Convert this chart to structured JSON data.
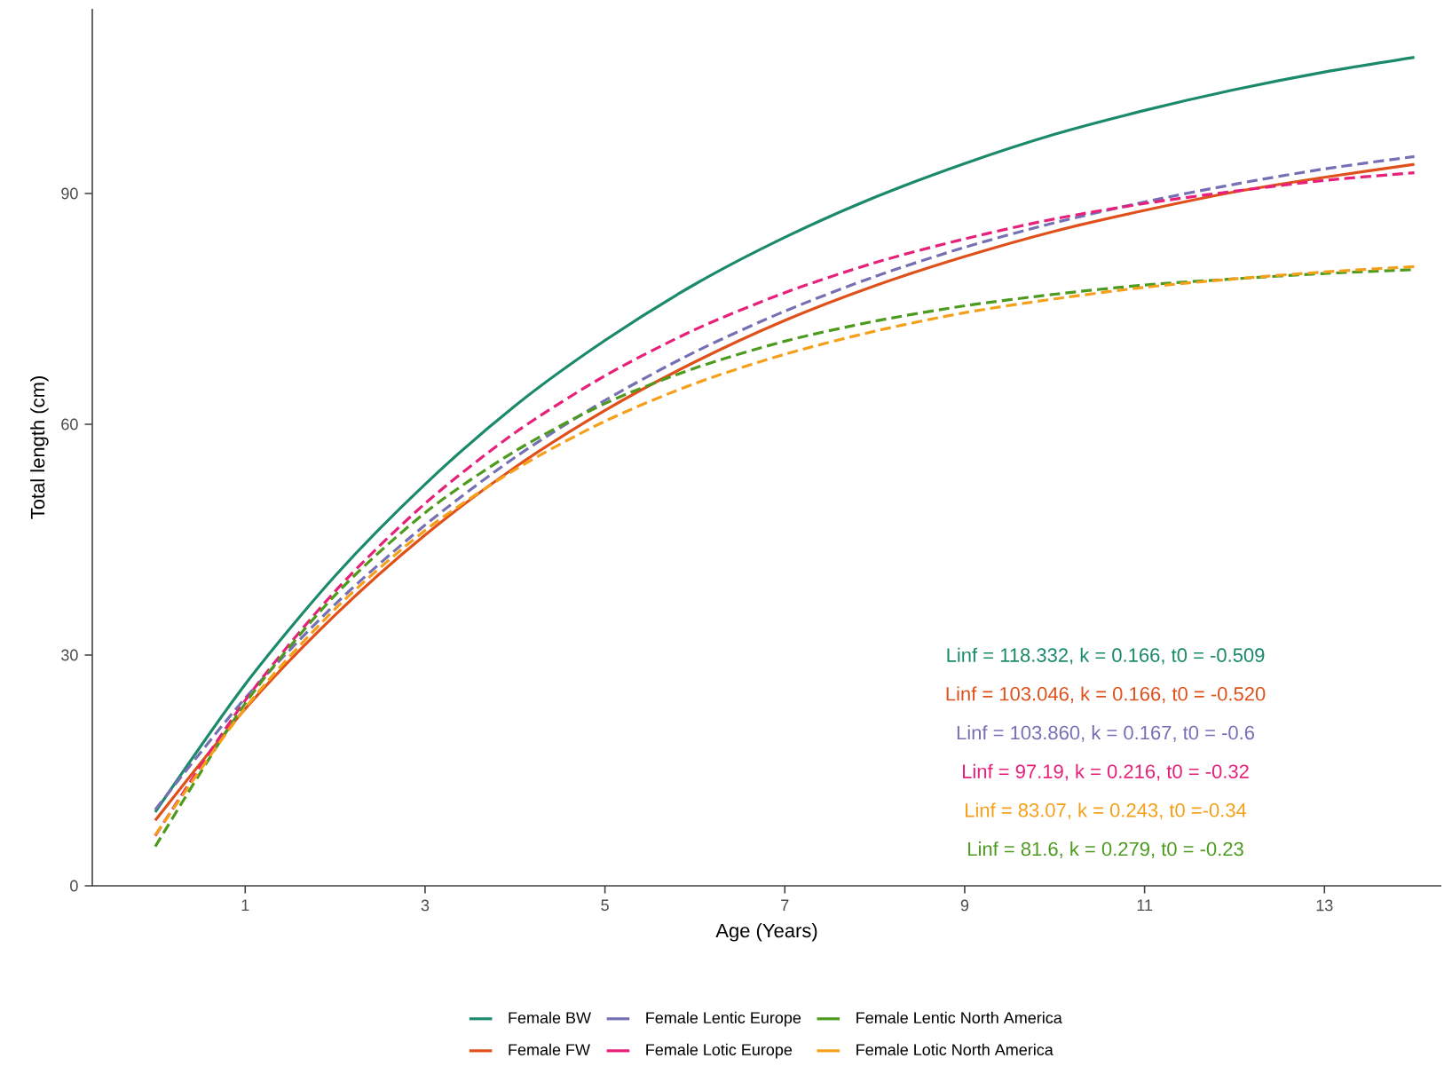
{
  "chart_data": {
    "type": "line",
    "xlabel": "Age (Years)",
    "ylabel": "Total length (cm)",
    "x": [
      0,
      1,
      2,
      3,
      4,
      5,
      6,
      7,
      8,
      9,
      10,
      11,
      12,
      13,
      14
    ],
    "xlim": [
      -0.7,
      14.3
    ],
    "xticks": [
      1,
      3,
      5,
      7,
      9,
      11,
      13
    ],
    "ylim": [
      0,
      114
    ],
    "yticks": [
      0,
      30,
      60,
      90
    ],
    "grid": false,
    "legend": "bottom",
    "marker": "none",
    "series": [
      {
        "name": "Female BW",
        "color": "#1b8a6b",
        "line_style": "solid",
        "values": [
          9.6,
          26.2,
          40.3,
          52.2,
          62.4,
          70.9,
          78.2,
          84.3,
          89.5,
          93.9,
          97.7,
          100.8,
          103.5,
          105.8,
          107.7
        ]
      },
      {
        "name": "Female FW",
        "color": "#e0501a",
        "line_style": "solid",
        "values": [
          8.5,
          23.0,
          35.2,
          45.6,
          54.4,
          61.8,
          68.1,
          73.5,
          78.0,
          81.8,
          85.1,
          87.8,
          90.2,
          92.1,
          93.8
        ]
      },
      {
        "name": "Female Lentic Europe",
        "color": "#7570b3",
        "line_style": "dashed",
        "values": [
          9.9,
          24.4,
          36.6,
          46.9,
          55.7,
          63.1,
          69.4,
          74.7,
          79.2,
          83.0,
          86.2,
          88.9,
          91.2,
          93.2,
          94.8
        ]
      },
      {
        "name": "Female Lotic Europe",
        "color": "#e7217a",
        "line_style": "dashed",
        "values": [
          6.5,
          24.1,
          38.3,
          49.7,
          58.9,
          66.3,
          72.3,
          77.1,
          81.0,
          84.1,
          86.7,
          88.7,
          90.3,
          91.7,
          92.7
        ]
      },
      {
        "name": "Female Lentic North America",
        "color": "#4c9a1e",
        "line_style": "dashed",
        "values": [
          5.1,
          23.7,
          37.8,
          48.5,
          56.5,
          62.7,
          67.3,
          70.8,
          73.4,
          75.4,
          76.9,
          78.1,
          78.9,
          79.6,
          80.1
        ]
      },
      {
        "name": "Female Lotic North America",
        "color": "#f5a01a",
        "line_style": "dashed",
        "values": [
          6.6,
          23.1,
          36.0,
          46.2,
          54.1,
          60.4,
          65.3,
          69.1,
          72.1,
          74.5,
          76.3,
          77.8,
          78.9,
          79.8,
          80.5
        ]
      }
    ],
    "annotations": [
      "Linf = 118.332, k = 0.166, t0 = -0.509",
      "Linf = 103.046, k = 0.166, t0 = -0.520",
      "Linf = 103.860, k = 0.167, t0 = -0.6",
      "Linf = 97.19, k = 0.216, t0 = -0.32",
      "Linf = 83.07, k = 0.243, t0 =-0.34",
      "Linf = 81.6, k = 0.279, t0 = -0.23"
    ]
  }
}
